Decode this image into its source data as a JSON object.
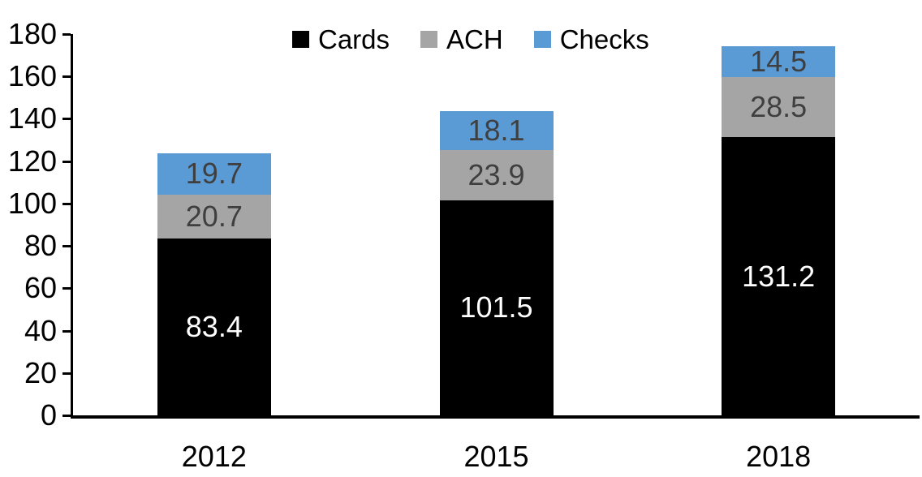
{
  "chart_data": {
    "type": "bar",
    "stacked": true,
    "title": "",
    "xlabel": "",
    "ylabel": "",
    "categories": [
      "2012",
      "2015",
      "2018"
    ],
    "series": [
      {
        "name": "Cards",
        "color": "#000000",
        "label_color": "#ffffff",
        "values": [
          83.4,
          101.5,
          131.2
        ]
      },
      {
        "name": "ACH",
        "color": "#a5a5a5",
        "label_color": "#3f3f3f",
        "values": [
          20.7,
          23.9,
          28.5
        ]
      },
      {
        "name": "Checks",
        "color": "#5b9bd5",
        "label_color": "#3f3f3f",
        "values": [
          19.7,
          18.1,
          14.5
        ]
      }
    ],
    "totals": [
      123.8,
      143.5,
      174.2
    ],
    "ylim": [
      0,
      180
    ],
    "yticks": [
      0,
      20,
      40,
      60,
      80,
      100,
      120,
      140,
      160,
      180
    ],
    "grid": false,
    "legend_position": "top-center",
    "value_labels": "inside-center",
    "axis_color": "#000000"
  }
}
